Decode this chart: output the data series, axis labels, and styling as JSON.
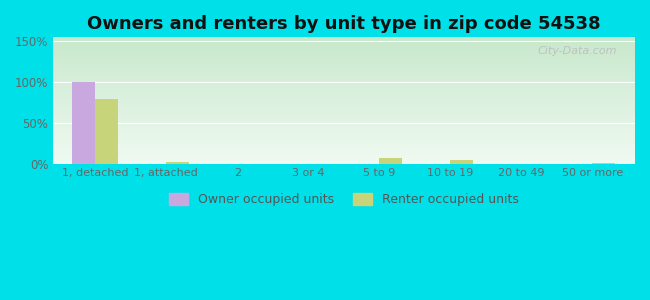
{
  "title": "Owners and renters by unit type in zip code 54538",
  "categories": [
    "1, detached",
    "1, attached",
    "2",
    "3 or 4",
    "5 to 9",
    "10 to 19",
    "20 to 49",
    "50 or more"
  ],
  "owner_values": [
    100,
    0,
    0,
    0,
    0,
    0,
    0,
    0
  ],
  "renter_values": [
    80,
    3,
    0,
    0,
    8,
    5,
    0,
    1
  ],
  "owner_color": "#c9a8e0",
  "renter_color": "#c8d47a",
  "background_outer": "#00e0e8",
  "gradient_top": "#c8e8cc",
  "gradient_bottom": "#f0faf2",
  "ylim": [
    0,
    155
  ],
  "yticks": [
    0,
    50,
    100,
    150
  ],
  "ytick_labels": [
    "0%",
    "50%",
    "100%",
    "150%"
  ],
  "bar_width": 0.32,
  "title_fontsize": 13,
  "watermark": "City-Data.com"
}
